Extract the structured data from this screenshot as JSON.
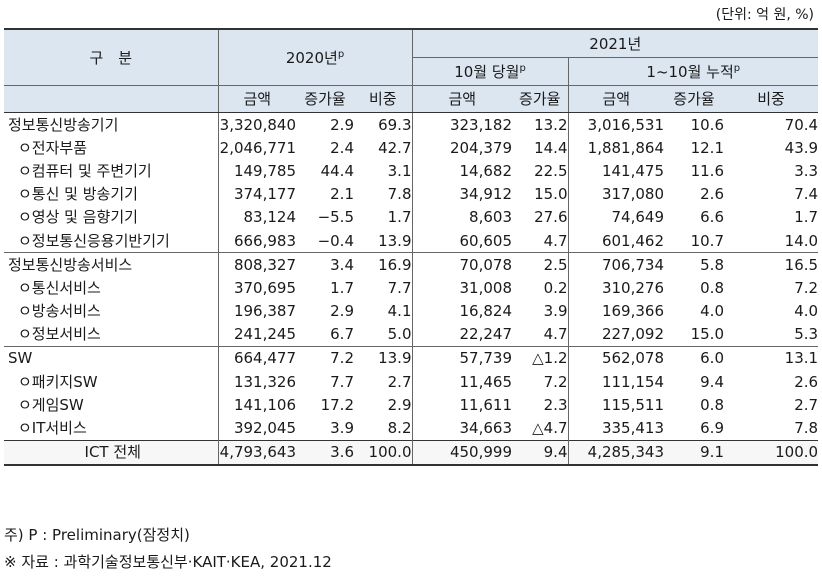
{
  "unit": "(단위: 억 원, %)",
  "header": {
    "category": "구　분",
    "y2020": "2020년",
    "y2020_sup": "p",
    "y2021": "2021년",
    "oct": "10월 당월",
    "oct_sup": "p",
    "cum": "1~10월 누적",
    "cum_sup": "p",
    "amount": "금액",
    "growth": "증가율",
    "share": "비중"
  },
  "rows": [
    {
      "label": "정보통신방송기기",
      "sub": false,
      "cells": [
        "3,320,840",
        "2.9",
        "69.3",
        "323,182",
        "13.2",
        "3,016,531",
        "10.6",
        "70.4"
      ]
    },
    {
      "label": "ㅇ전자부품",
      "sub": true,
      "cells": [
        "2,046,771",
        "2.4",
        "42.7",
        "204,379",
        "14.4",
        "1,881,864",
        "12.1",
        "43.9"
      ]
    },
    {
      "label": "ㅇ컴퓨터 및 주변기기",
      "sub": true,
      "cells": [
        "149,785",
        "44.4",
        "3.1",
        "14,682",
        "22.5",
        "141,475",
        "11.6",
        "3.3"
      ]
    },
    {
      "label": "ㅇ통신 및 방송기기",
      "sub": true,
      "cells": [
        "374,177",
        "2.1",
        "7.8",
        "34,912",
        "15.0",
        "317,080",
        "2.6",
        "7.4"
      ]
    },
    {
      "label": "ㅇ영상 및 음향기기",
      "sub": true,
      "cells": [
        "83,124",
        "−5.5",
        "1.7",
        "8,603",
        "27.6",
        "74,649",
        "6.6",
        "1.7"
      ]
    },
    {
      "label": "ㅇ정보통신응용기반기기",
      "sub": true,
      "cells": [
        "666,983",
        "−0.4",
        "13.9",
        "60,605",
        "4.7",
        "601,462",
        "10.7",
        "14.0"
      ]
    },
    {
      "label": "정보통신방송서비스",
      "sub": false,
      "cells": [
        "808,327",
        "3.4",
        "16.9",
        "70,078",
        "2.5",
        "706,734",
        "5.8",
        "16.5"
      ]
    },
    {
      "label": "ㅇ통신서비스",
      "sub": true,
      "cells": [
        "370,695",
        "1.7",
        "7.7",
        "31,008",
        "0.2",
        "310,276",
        "0.8",
        "7.2"
      ]
    },
    {
      "label": "ㅇ방송서비스",
      "sub": true,
      "cells": [
        "196,387",
        "2.9",
        "4.1",
        "16,824",
        "3.9",
        "169,366",
        "4.0",
        "4.0"
      ]
    },
    {
      "label": "ㅇ정보서비스",
      "sub": true,
      "cells": [
        "241,245",
        "6.7",
        "5.0",
        "22,247",
        "4.7",
        "227,092",
        "15.0",
        "5.3"
      ]
    },
    {
      "label": "SW",
      "sub": false,
      "cells": [
        "664,477",
        "7.2",
        "13.9",
        "57,739",
        "△1.2",
        "562,078",
        "6.0",
        "13.1"
      ]
    },
    {
      "label": "ㅇ패키지SW",
      "sub": true,
      "cells": [
        "131,326",
        "7.7",
        "2.7",
        "11,465",
        "7.2",
        "111,154",
        "9.4",
        "2.6"
      ]
    },
    {
      "label": "ㅇ게임SW",
      "sub": true,
      "cells": [
        "141,106",
        "17.2",
        "2.9",
        "11,611",
        "2.3",
        "115,511",
        "0.8",
        "2.7"
      ]
    },
    {
      "label": "ㅇIT서비스",
      "sub": true,
      "cells": [
        "392,045",
        "3.9",
        "8.2",
        "34,663",
        "△4.7",
        "335,413",
        "6.9",
        "7.8"
      ]
    }
  ],
  "total": {
    "label": "ICT 전체",
    "cells": [
      "4,793,643",
      "3.6",
      "100.0",
      "450,999",
      "9.4",
      "4,285,343",
      "9.1",
      "100.0"
    ]
  },
  "notes": {
    "note1": "주) P : Preliminary(잠정치)",
    "note2": "※ 자료 : 과학기술정보통신부·KAIT·KEA, 2021.12"
  }
}
